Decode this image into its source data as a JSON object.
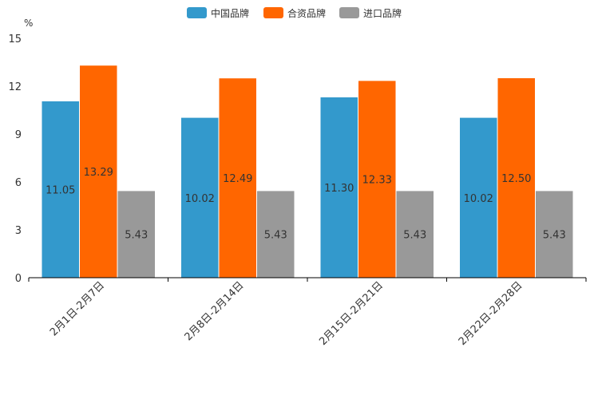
{
  "chart_data": {
    "type": "bar",
    "title": "",
    "xlabel": "",
    "ylabel": "%",
    "ylim": [
      0,
      15
    ],
    "yticks": [
      0,
      3,
      6,
      9,
      12,
      15
    ],
    "categories": [
      "2月1日-2月7日",
      "2月8日-2月14日",
      "2月15日-2月21日",
      "2月22日-2月28日"
    ],
    "series": [
      {
        "name": "中国品牌",
        "color": "#3399cc",
        "values": [
          11.05,
          10.02,
          11.3,
          10.02
        ],
        "labels": [
          "11.05",
          "10.02",
          "11.30",
          "10.02"
        ]
      },
      {
        "name": "合资品牌",
        "color": "#ff6600",
        "values": [
          13.29,
          12.49,
          12.33,
          12.5
        ],
        "labels": [
          "13.29",
          "12.49",
          "12.33",
          "12.50"
        ]
      },
      {
        "name": "进口品牌",
        "color": "#999999",
        "values": [
          5.43,
          5.43,
          5.43,
          5.43
        ],
        "labels": [
          "5.43",
          "5.43",
          "5.43",
          "5.43"
        ]
      }
    ],
    "legend": "top-center",
    "grid": false
  }
}
